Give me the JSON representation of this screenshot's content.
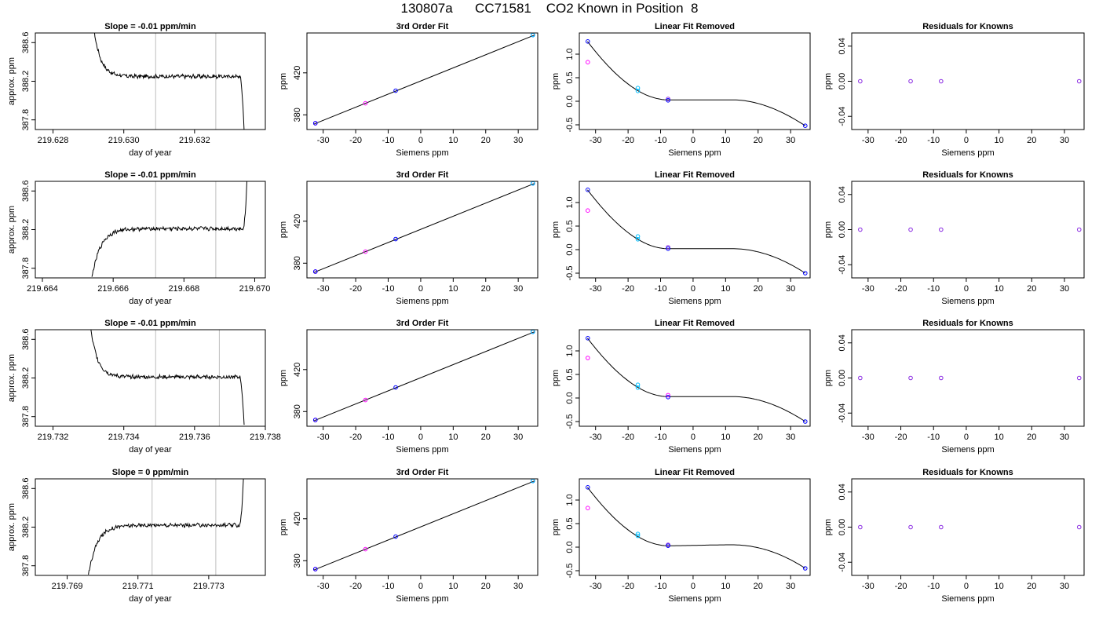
{
  "main_title": "130807a      CC71581    CO2 Known in Position  8",
  "colors": {
    "trace": "#000000",
    "fit": "#000000",
    "grid": "#bebebe",
    "magenta": "#ff00ff",
    "cyan": "#00bfff",
    "blue": "#0000ff",
    "purple": "#8a2be2"
  },
  "chart_data": [
    {
      "type": "line",
      "row": 1,
      "panel": "time",
      "title": "Slope =  -0.01  ppm/min",
      "xlabel": "day of year",
      "ylabel": "approx. ppm",
      "xlim": [
        219.6275,
        219.634
      ],
      "ylim": [
        387.7,
        388.7
      ],
      "xticks": [
        219.628,
        219.63,
        219.632
      ],
      "xtick_labels": [
        "219.628",
        "219.630",
        "219.632"
      ],
      "yticks": [
        387.8,
        388.2,
        388.6
      ],
      "ytick_labels": [
        "387.8",
        "388.2",
        "388.6"
      ],
      "vlines": [
        219.6309,
        219.6326
      ],
      "shape": "falling",
      "start": [
        219.6291,
        388.9
      ],
      "end": [
        219.6334,
        387.7
      ],
      "plateau": 388.25
    },
    {
      "type": "scatter",
      "row": 1,
      "panel": "fit",
      "title": "3rd Order Fit",
      "xlabel": "Siemens ppm",
      "ylabel": "ppm",
      "xlim": [
        -35,
        36
      ],
      "ylim": [
        366,
        458
      ],
      "xticks": [
        -30,
        -20,
        -10,
        0,
        10,
        20,
        30
      ],
      "xtick_labels": [
        "-30",
        "-20",
        "-10",
        "0",
        "10",
        "20",
        "30"
      ],
      "yticks": [
        380,
        420
      ],
      "ytick_labels": [
        "380",
        "420"
      ],
      "line": [
        [
          -33,
          371
        ],
        [
          35,
          456
        ]
      ],
      "points": [
        {
          "x": -32.4,
          "y": 372,
          "c": "magenta"
        },
        {
          "x": -32.4,
          "y": 372,
          "c": "blue"
        },
        {
          "x": -17.0,
          "y": 391,
          "c": "magenta"
        },
        {
          "x": -7.7,
          "y": 403,
          "c": "blue"
        },
        {
          "x": 34.5,
          "y": 456,
          "c": "blue"
        },
        {
          "x": 34.5,
          "y": 456,
          "c": "cyan"
        }
      ]
    },
    {
      "type": "scatter",
      "row": 1,
      "panel": "linear",
      "title": "Linear Fit Removed",
      "xlabel": "Siemens ppm",
      "ylabel": "ppm",
      "xlim": [
        -35,
        36
      ],
      "ylim": [
        -0.6,
        1.45
      ],
      "xticks": [
        -30,
        -20,
        -10,
        0,
        10,
        20,
        30
      ],
      "xtick_labels": [
        "-30",
        "-20",
        "-10",
        "0",
        "10",
        "20",
        "30"
      ],
      "yticks": [
        -0.5,
        0.0,
        0.5,
        1.0
      ],
      "ytick_labels": [
        "-0.5",
        "0.0",
        "0.5",
        "1.0"
      ],
      "curve": {
        "x0": -32.5,
        "x1": 34.5,
        "y0": 1.27,
        "y1": -0.52,
        "xmin": -7.7,
        "ymin": 0.03,
        "xmax": 12.0,
        "ymax": 0.03
      },
      "points": [
        {
          "x": -32.4,
          "y": 1.27,
          "c": "blue"
        },
        {
          "x": -32.4,
          "y": 0.83,
          "c": "magenta"
        },
        {
          "x": -17.0,
          "y": 0.28,
          "c": "cyan"
        },
        {
          "x": -17.0,
          "y": 0.22,
          "c": "cyan"
        },
        {
          "x": -7.7,
          "y": 0.05,
          "c": "purple"
        },
        {
          "x": -7.7,
          "y": 0.02,
          "c": "blue"
        },
        {
          "x": 34.5,
          "y": -0.52,
          "c": "blue"
        }
      ]
    },
    {
      "type": "scatter",
      "row": 1,
      "panel": "resid",
      "title": "Residuals for Knowns",
      "xlabel": "Siemens ppm",
      "ylabel": "ppm",
      "xlim": [
        -35,
        36
      ],
      "ylim": [
        -0.055,
        0.055
      ],
      "xticks": [
        -30,
        -20,
        -10,
        0,
        10,
        20,
        30
      ],
      "xtick_labels": [
        "-30",
        "-20",
        "-10",
        "0",
        "10",
        "20",
        "30"
      ],
      "yticks": [
        -0.04,
        0.0,
        0.04
      ],
      "ytick_labels": [
        "-0.04",
        "0.00",
        "0.04"
      ],
      "points": [
        {
          "x": -32.4,
          "y": 0,
          "c": "purple"
        },
        {
          "x": -17.0,
          "y": 0,
          "c": "purple"
        },
        {
          "x": -7.7,
          "y": 0,
          "c": "purple"
        },
        {
          "x": 34.5,
          "y": 0,
          "c": "purple"
        }
      ]
    },
    {
      "type": "line",
      "row": 2,
      "panel": "time",
      "title": "Slope =  -0.01  ppm/min",
      "xlabel": "day of year",
      "ylabel": "approx. ppm",
      "xlim": [
        219.6638,
        219.6703
      ],
      "ylim": [
        387.7,
        388.7
      ],
      "xticks": [
        219.664,
        219.666,
        219.668,
        219.67
      ],
      "xtick_labels": [
        "219.664",
        "219.666",
        "219.668",
        "219.670"
      ],
      "yticks": [
        387.8,
        388.2,
        388.6
      ],
      "ytick_labels": [
        "387.8",
        "388.2",
        "388.6"
      ],
      "vlines": [
        219.6672,
        219.6689
      ],
      "shape": "rising",
      "start": [
        219.6654,
        387.7
      ],
      "end": [
        219.6698,
        388.9
      ],
      "plateau": 388.21
    },
    {
      "type": "scatter",
      "row": 2,
      "panel": "fit",
      "title": "3rd Order Fit",
      "xlabel": "Siemens ppm",
      "ylabel": "ppm",
      "xlim": [
        -35,
        36
      ],
      "ylim": [
        366,
        458
      ],
      "xticks": [
        -30,
        -20,
        -10,
        0,
        10,
        20,
        30
      ],
      "xtick_labels": [
        "-30",
        "-20",
        "-10",
        "0",
        "10",
        "20",
        "30"
      ],
      "yticks": [
        380,
        420
      ],
      "ytick_labels": [
        "380",
        "420"
      ],
      "line": [
        [
          -33,
          371
        ],
        [
          35,
          456
        ]
      ],
      "points": [
        {
          "x": -32.4,
          "y": 372,
          "c": "magenta"
        },
        {
          "x": -32.4,
          "y": 372,
          "c": "blue"
        },
        {
          "x": -17.0,
          "y": 391,
          "c": "magenta"
        },
        {
          "x": -7.7,
          "y": 403,
          "c": "blue"
        },
        {
          "x": 34.5,
          "y": 456,
          "c": "blue"
        },
        {
          "x": 34.5,
          "y": 456,
          "c": "cyan"
        }
      ]
    },
    {
      "type": "scatter",
      "row": 2,
      "panel": "linear",
      "title": "Linear Fit Removed",
      "xlabel": "Siemens ppm",
      "ylabel": "ppm",
      "xlim": [
        -35,
        36
      ],
      "ylim": [
        -0.6,
        1.45
      ],
      "xticks": [
        -30,
        -20,
        -10,
        0,
        10,
        20,
        30
      ],
      "xtick_labels": [
        "-30",
        "-20",
        "-10",
        "0",
        "10",
        "20",
        "30"
      ],
      "yticks": [
        -0.5,
        0.0,
        0.5,
        1.0
      ],
      "ytick_labels": [
        "-0.5",
        "0.0",
        "0.5",
        "1.0"
      ],
      "curve": {
        "x0": -32.5,
        "x1": 34.5,
        "y0": 1.27,
        "y1": -0.5,
        "xmin": -7.7,
        "ymin": 0.02,
        "xmax": 12.0,
        "ymax": 0.02
      },
      "points": [
        {
          "x": -32.4,
          "y": 1.27,
          "c": "blue"
        },
        {
          "x": -32.4,
          "y": 0.83,
          "c": "magenta"
        },
        {
          "x": -17.0,
          "y": 0.28,
          "c": "cyan"
        },
        {
          "x": -17.0,
          "y": 0.22,
          "c": "cyan"
        },
        {
          "x": -7.7,
          "y": 0.05,
          "c": "purple"
        },
        {
          "x": -7.7,
          "y": 0.02,
          "c": "blue"
        },
        {
          "x": 34.5,
          "y": -0.5,
          "c": "blue"
        }
      ]
    },
    {
      "type": "scatter",
      "row": 2,
      "panel": "resid",
      "title": "Residuals for Knowns",
      "xlabel": "Siemens ppm",
      "ylabel": "ppm",
      "xlim": [
        -35,
        36
      ],
      "ylim": [
        -0.055,
        0.055
      ],
      "xticks": [
        -30,
        -20,
        -10,
        0,
        10,
        20,
        30
      ],
      "xtick_labels": [
        "-30",
        "-20",
        "-10",
        "0",
        "10",
        "20",
        "30"
      ],
      "yticks": [
        -0.04,
        0.0,
        0.04
      ],
      "ytick_labels": [
        "-0.04",
        "0.00",
        "0.04"
      ],
      "points": [
        {
          "x": -32.4,
          "y": 0,
          "c": "purple"
        },
        {
          "x": -17.0,
          "y": 0,
          "c": "purple"
        },
        {
          "x": -7.7,
          "y": 0,
          "c": "purple"
        },
        {
          "x": 34.5,
          "y": 0,
          "c": "purple"
        }
      ]
    },
    {
      "type": "line",
      "row": 3,
      "panel": "time",
      "title": "Slope =  -0.01  ppm/min",
      "xlabel": "day of year",
      "ylabel": "approx. ppm",
      "xlim": [
        219.7315,
        219.738
      ],
      "ylim": [
        387.7,
        388.7
      ],
      "xticks": [
        219.732,
        219.734,
        219.736,
        219.738
      ],
      "xtick_labels": [
        "219.732",
        "219.734",
        "219.736",
        "219.738"
      ],
      "yticks": [
        387.8,
        388.2,
        388.6
      ],
      "ytick_labels": [
        "387.8",
        "388.2",
        "388.6"
      ],
      "vlines": [
        219.7349,
        219.7367
      ],
      "shape": "falling",
      "start": [
        219.733,
        388.9
      ],
      "end": [
        219.7374,
        387.7
      ],
      "plateau": 388.21
    },
    {
      "type": "scatter",
      "row": 3,
      "panel": "fit",
      "title": "3rd Order Fit",
      "xlabel": "Siemens ppm",
      "ylabel": "ppm",
      "xlim": [
        -35,
        36
      ],
      "ylim": [
        366,
        458
      ],
      "xticks": [
        -30,
        -20,
        -10,
        0,
        10,
        20,
        30
      ],
      "xtick_labels": [
        "-30",
        "-20",
        "-10",
        "0",
        "10",
        "20",
        "30"
      ],
      "yticks": [
        380,
        420
      ],
      "ytick_labels": [
        "380",
        "420"
      ],
      "line": [
        [
          -33,
          371
        ],
        [
          35,
          456
        ]
      ],
      "points": [
        {
          "x": -32.4,
          "y": 372,
          "c": "magenta"
        },
        {
          "x": -32.4,
          "y": 372,
          "c": "blue"
        },
        {
          "x": -17.0,
          "y": 391,
          "c": "magenta"
        },
        {
          "x": -7.7,
          "y": 403,
          "c": "blue"
        },
        {
          "x": 34.5,
          "y": 456,
          "c": "blue"
        },
        {
          "x": 34.5,
          "y": 456,
          "c": "cyan"
        }
      ]
    },
    {
      "type": "scatter",
      "row": 3,
      "panel": "linear",
      "title": "Linear Fit Removed",
      "xlabel": "Siemens ppm",
      "ylabel": "ppm",
      "xlim": [
        -35,
        36
      ],
      "ylim": [
        -0.6,
        1.45
      ],
      "xticks": [
        -30,
        -20,
        -10,
        0,
        10,
        20,
        30
      ],
      "xtick_labels": [
        "-30",
        "-20",
        "-10",
        "0",
        "10",
        "20",
        "30"
      ],
      "yticks": [
        -0.5,
        0.0,
        0.5,
        1.0
      ],
      "ytick_labels": [
        "-0.5",
        "0.0",
        "0.5",
        "1.0"
      ],
      "curve": {
        "x0": -32.5,
        "x1": 34.5,
        "y0": 1.27,
        "y1": -0.5,
        "xmin": -7.7,
        "ymin": 0.03,
        "xmax": 12.0,
        "ymax": 0.03
      },
      "points": [
        {
          "x": -32.4,
          "y": 1.27,
          "c": "blue"
        },
        {
          "x": -32.4,
          "y": 0.85,
          "c": "magenta"
        },
        {
          "x": -17.0,
          "y": 0.28,
          "c": "cyan"
        },
        {
          "x": -17.0,
          "y": 0.22,
          "c": "cyan"
        },
        {
          "x": -7.7,
          "y": 0.06,
          "c": "magenta"
        },
        {
          "x": -7.7,
          "y": 0.02,
          "c": "blue"
        },
        {
          "x": 34.5,
          "y": -0.5,
          "c": "blue"
        }
      ]
    },
    {
      "type": "scatter",
      "row": 3,
      "panel": "resid",
      "title": "Residuals for Knowns",
      "xlabel": "Siemens ppm",
      "ylabel": "ppm",
      "xlim": [
        -35,
        36
      ],
      "ylim": [
        -0.055,
        0.055
      ],
      "xticks": [
        -30,
        -20,
        -10,
        0,
        10,
        20,
        30
      ],
      "xtick_labels": [
        "-30",
        "-20",
        "-10",
        "0",
        "10",
        "20",
        "30"
      ],
      "yticks": [
        -0.04,
        0.0,
        0.04
      ],
      "ytick_labels": [
        "-0.04",
        "0.00",
        "0.04"
      ],
      "points": [
        {
          "x": -32.4,
          "y": 0,
          "c": "purple"
        },
        {
          "x": -17.0,
          "y": 0,
          "c": "purple"
        },
        {
          "x": -7.7,
          "y": 0,
          "c": "purple"
        },
        {
          "x": 34.5,
          "y": 0,
          "c": "purple"
        }
      ]
    },
    {
      "type": "line",
      "row": 4,
      "panel": "time",
      "title": "Slope =  0  ppm/min",
      "xlabel": "day of year",
      "ylabel": "approx. ppm",
      "xlim": [
        219.7681,
        219.7746
      ],
      "ylim": [
        387.7,
        388.7
      ],
      "xticks": [
        219.769,
        219.771,
        219.773
      ],
      "xtick_labels": [
        "219.769",
        "219.771",
        "219.773"
      ],
      "yticks": [
        387.8,
        388.2,
        388.6
      ],
      "ytick_labels": [
        "387.8",
        "388.2",
        "388.6"
      ],
      "vlines": [
        219.7714,
        219.7732
      ],
      "shape": "rising",
      "start": [
        219.7696,
        387.7
      ],
      "end": [
        219.774,
        388.9
      ],
      "plateau": 388.22
    },
    {
      "type": "scatter",
      "row": 4,
      "panel": "fit",
      "title": "3rd Order Fit",
      "xlabel": "Siemens ppm",
      "ylabel": "ppm",
      "xlim": [
        -35,
        36
      ],
      "ylim": [
        366,
        458
      ],
      "xticks": [
        -30,
        -20,
        -10,
        0,
        10,
        20,
        30
      ],
      "xtick_labels": [
        "-30",
        "-20",
        "-10",
        "0",
        "10",
        "20",
        "30"
      ],
      "yticks": [
        380,
        420
      ],
      "ytick_labels": [
        "380",
        "420"
      ],
      "line": [
        [
          -33,
          371
        ],
        [
          35,
          456
        ]
      ],
      "points": [
        {
          "x": -32.4,
          "y": 372,
          "c": "magenta"
        },
        {
          "x": -32.4,
          "y": 372,
          "c": "blue"
        },
        {
          "x": -17.0,
          "y": 391,
          "c": "magenta"
        },
        {
          "x": -7.7,
          "y": 403,
          "c": "blue"
        },
        {
          "x": 34.5,
          "y": 456,
          "c": "blue"
        },
        {
          "x": 34.5,
          "y": 456,
          "c": "cyan"
        }
      ]
    },
    {
      "type": "scatter",
      "row": 4,
      "panel": "linear",
      "title": "Linear Fit Removed",
      "xlabel": "Siemens ppm",
      "ylabel": "ppm",
      "xlim": [
        -35,
        36
      ],
      "ylim": [
        -0.6,
        1.45
      ],
      "xticks": [
        -30,
        -20,
        -10,
        0,
        10,
        20,
        30
      ],
      "xtick_labels": [
        "-30",
        "-20",
        "-10",
        "0",
        "10",
        "20",
        "30"
      ],
      "yticks": [
        -0.5,
        0.0,
        0.5,
        1.0
      ],
      "ytick_labels": [
        "-0.5",
        "0.0",
        "0.5",
        "1.0"
      ],
      "curve": {
        "x0": -32.5,
        "x1": 34.5,
        "y0": 1.27,
        "y1": -0.45,
        "xmin": -7.7,
        "ymin": 0.03,
        "xmax": 12.0,
        "ymax": 0.05
      },
      "points": [
        {
          "x": -32.4,
          "y": 1.27,
          "c": "blue"
        },
        {
          "x": -32.4,
          "y": 0.83,
          "c": "magenta"
        },
        {
          "x": -17.0,
          "y": 0.28,
          "c": "cyan"
        },
        {
          "x": -17.0,
          "y": 0.24,
          "c": "cyan"
        },
        {
          "x": -7.7,
          "y": 0.05,
          "c": "purple"
        },
        {
          "x": -7.7,
          "y": 0.03,
          "c": "blue"
        },
        {
          "x": 34.5,
          "y": -0.45,
          "c": "blue"
        }
      ]
    },
    {
      "type": "scatter",
      "row": 4,
      "panel": "resid",
      "title": "Residuals for Knowns",
      "xlabel": "Siemens ppm",
      "ylabel": "ppm",
      "xlim": [
        -35,
        36
      ],
      "ylim": [
        -0.055,
        0.055
      ],
      "xticks": [
        -30,
        -20,
        -10,
        0,
        10,
        20,
        30
      ],
      "xtick_labels": [
        "-30",
        "-20",
        "-10",
        "0",
        "10",
        "20",
        "30"
      ],
      "yticks": [
        -0.04,
        0.0,
        0.04
      ],
      "ytick_labels": [
        "-0.04",
        "0.00",
        "0.04"
      ],
      "points": [
        {
          "x": -32.4,
          "y": 0,
          "c": "purple"
        },
        {
          "x": -17.0,
          "y": 0,
          "c": "purple"
        },
        {
          "x": -7.7,
          "y": 0,
          "c": "purple"
        },
        {
          "x": 34.5,
          "y": 0,
          "c": "purple"
        }
      ]
    }
  ]
}
